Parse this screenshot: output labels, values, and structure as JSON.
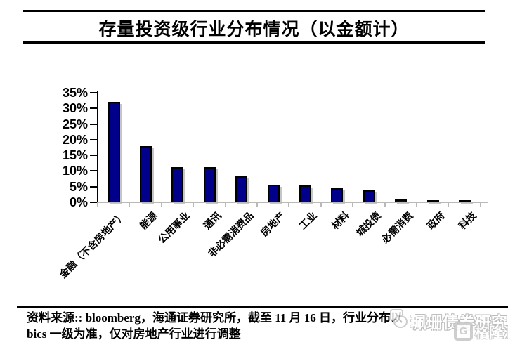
{
  "title": "存量投资级行业分布情况（以金额计）",
  "chart_data": {
    "type": "bar",
    "title": "存量投资级行业分布情况（以金额计）",
    "categories": [
      "金融（不含房地产）",
      "能源",
      "公用事业",
      "通讯",
      "非必需消费品",
      "房地产",
      "工业",
      "材料",
      "城投债",
      "必需消费",
      "政府",
      "科技"
    ],
    "values": [
      32,
      18,
      11.2,
      11.2,
      8.2,
      5.5,
      5.4,
      4.5,
      3.8,
      0.8,
      0.3,
      0.3
    ],
    "xlabel": "",
    "ylabel": "",
    "ylim": [
      0,
      35
    ],
    "ytick_step": 5,
    "ytick_labels": [
      "35%",
      "30%",
      "25%",
      "20%",
      "15%",
      "10%",
      "5%",
      "0%"
    ],
    "grid": false,
    "legend": "none",
    "bar_color": "#00008B",
    "bar_border_color": "#000000",
    "axis_color": "#000000",
    "baseline_color": "#b9b9b9"
  },
  "source_note": {
    "line1": "资料来源:: bloomberg，海通证券研究所，截至 11 月 16 日，行业分布以",
    "line2": "bics 一级为准，仅对房地产行业进行调整"
  },
  "watermark": {
    "research_text": "珮珊债券研究",
    "logo_letter": "G",
    "logo_text": "格隆汇"
  }
}
